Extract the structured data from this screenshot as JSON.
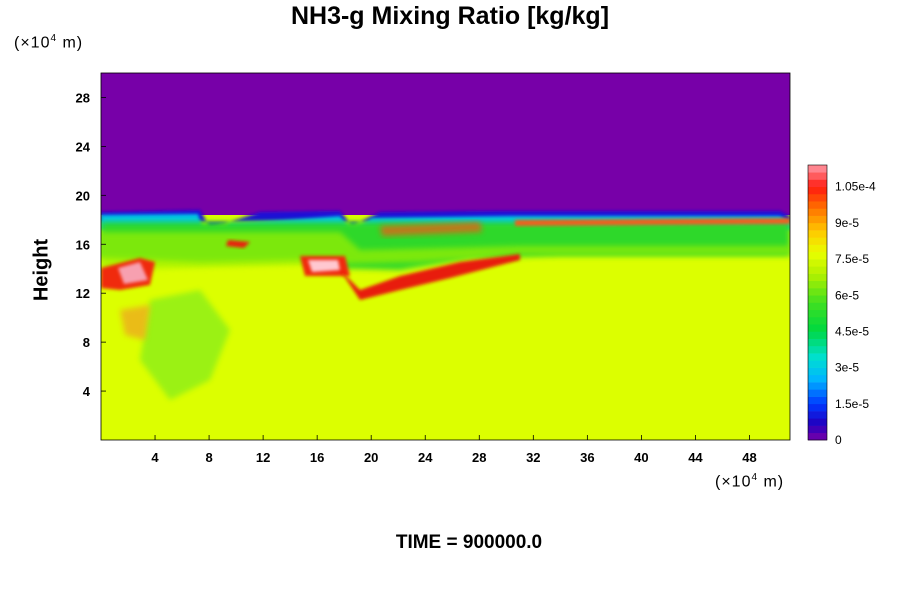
{
  "chart_data": {
    "type": "heatmap",
    "title": "NH3-g Mixing Ratio [kg/kg]",
    "ylabel": "Height",
    "y_unit": "(×10⁴ m)",
    "x_unit": "(×10⁴ m)",
    "footer": "TIME = 900000.0",
    "xlim": [
      0,
      51
    ],
    "ylim": [
      0,
      30
    ],
    "x_ticks": [
      "4",
      "8",
      "12",
      "16",
      "20",
      "24",
      "28",
      "32",
      "36",
      "40",
      "44",
      "48"
    ],
    "y_ticks": [
      "4",
      "8",
      "12",
      "16",
      "20",
      "24",
      "28"
    ],
    "colorbar": {
      "min": 0,
      "max": 0.000114,
      "ticks": [
        {
          "value": 0,
          "label": "0"
        },
        {
          "value": 1.5e-05,
          "label": "1.5e-5"
        },
        {
          "value": 3e-05,
          "label": "3e-5"
        },
        {
          "value": 4.5e-05,
          "label": "4.5e-5"
        },
        {
          "value": 6e-05,
          "label": "6e-5"
        },
        {
          "value": 7.5e-05,
          "label": "7.5e-5"
        },
        {
          "value": 9e-05,
          "label": "9e-5"
        },
        {
          "value": 0.000105,
          "label": "1.05e-4"
        }
      ]
    },
    "field_summary": {
      "above_18.5": 0,
      "background_below_12": 7.8e-05,
      "band_12_to_18": 6.5e-05,
      "peak": 0.00011
    }
  }
}
